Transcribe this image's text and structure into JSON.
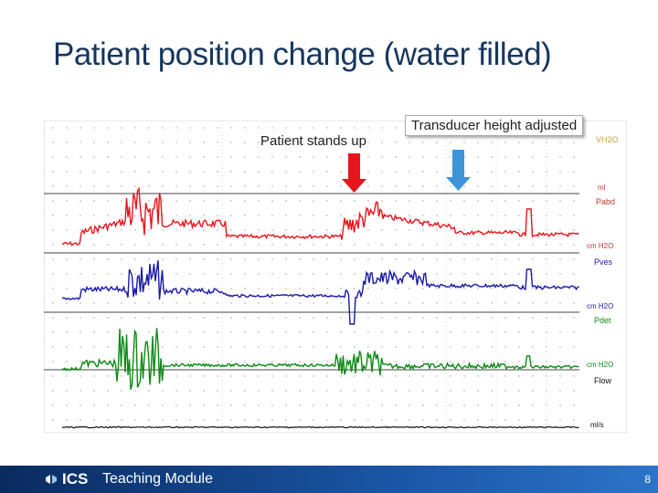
{
  "slide": {
    "title": "Patient position change (water filled)",
    "page_number": "8"
  },
  "callouts": {
    "stands_up": "Patient stands up",
    "transducer": "Transducer height adjusted"
  },
  "footer": {
    "logo_text": "ICS",
    "module": "Teaching Module"
  },
  "tracing": {
    "channel_labels": [
      "Pabd",
      "Pves",
      "Pdet",
      "Flow"
    ],
    "unit_labels": [
      "ml",
      "cm H2O",
      "cm H2O",
      "cm H2O",
      "ml/s"
    ],
    "top_label": "VH2O",
    "colors": {
      "pabd": "#e8141b",
      "pves": "#1a1aa6",
      "pdet": "#0c8a14",
      "flow": "#111111",
      "arrow_red": "#e8141b",
      "arrow_blue": "#3d95d8",
      "title": "#17365d"
    }
  }
}
